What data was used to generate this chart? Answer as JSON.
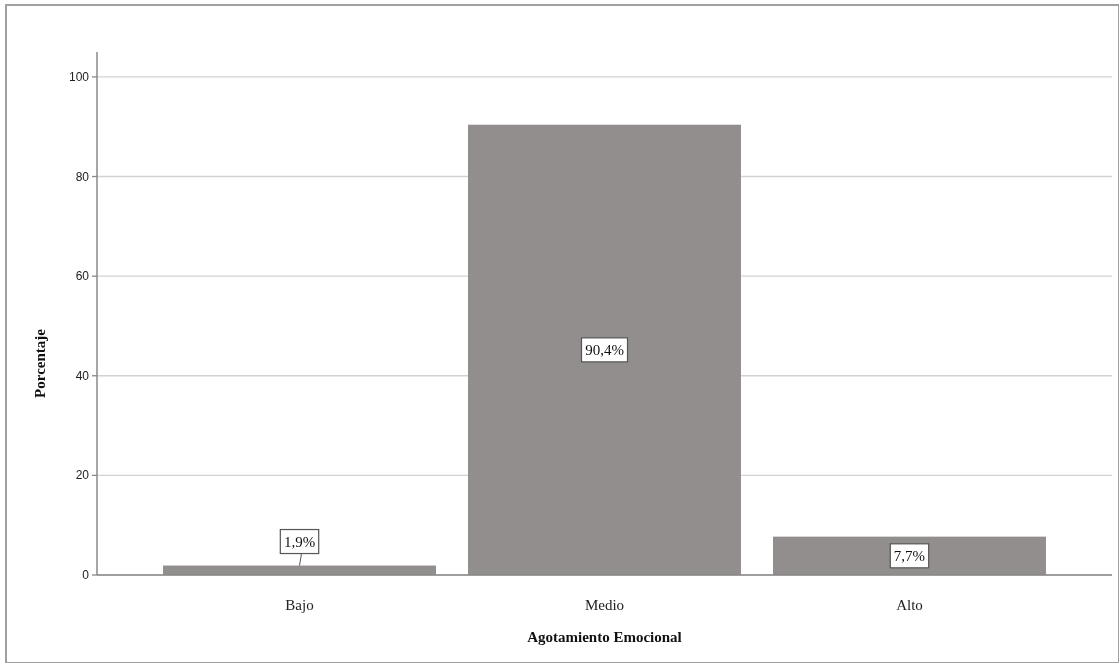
{
  "chart_data": {
    "type": "bar",
    "xlabel": "Agotamiento Emocional",
    "ylabel": "Porcentaje",
    "categories": [
      "Bajo",
      "Medio",
      "Alto"
    ],
    "values": [
      1.9,
      90.4,
      7.7
    ],
    "color": "#928e8d",
    "value_labels": [
      "1,9%",
      "90,4%",
      "7,7%"
    ],
    "ylim": [
      0,
      105
    ],
    "yticks": [
      0,
      20,
      40,
      60,
      80,
      100
    ],
    "grid": "y"
  }
}
